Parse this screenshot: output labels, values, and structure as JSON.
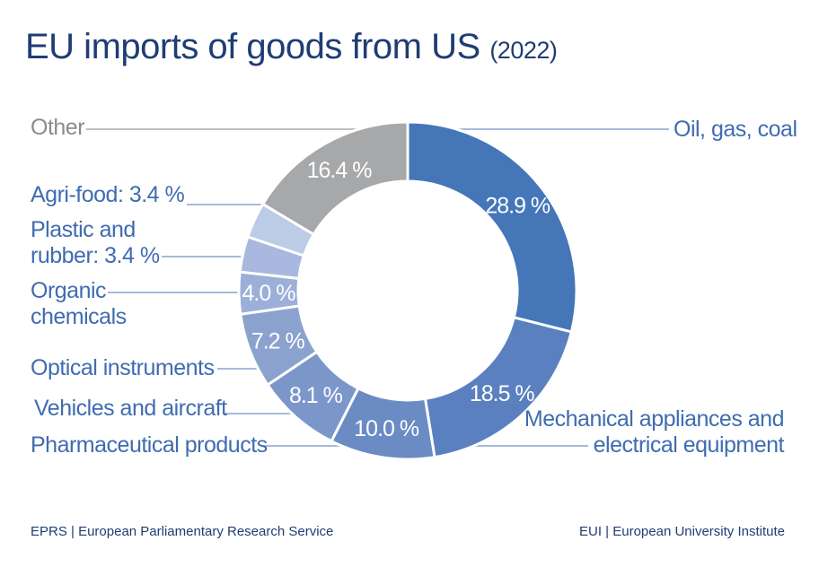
{
  "title": "EU imports of goods from US",
  "subtitle": "(2022)",
  "footer_left": "EPRS | European Parliamentary Research Service",
  "footer_right": "EUI | European University Institute",
  "chart_data": {
    "type": "pie",
    "donut": true,
    "title": "EU imports of goods from US (2022)",
    "unit": "%",
    "categories": [
      "Oil, gas, coal",
      "Mechanical appliances and electrical equipment",
      "Pharmaceutical products",
      "Vehicles and aircraft",
      "Optical instruments",
      "Organic chemicals",
      "Plastic and rubber",
      "Agri-food",
      "Other"
    ],
    "values": [
      28.9,
      18.5,
      10.0,
      8.1,
      7.2,
      4.0,
      3.4,
      3.4,
      16.4
    ],
    "data_labels": [
      "28.9 %",
      "18.5 %",
      "10.0 %",
      "8.1 %",
      "7.2 %",
      "4.0 %",
      "",
      "",
      "16.4 %"
    ],
    "legend_labels": [
      "Oil, gas, coal",
      "Mechanical appliances and\nelectrical equipment",
      "Pharmaceutical products",
      "Vehicles and aircraft",
      "Optical instruments",
      "Organic\nchemicals",
      "Plastic and\nrubber: 3.4 %",
      "Agri-food: 3.4 %",
      "Other"
    ],
    "colors": [
      "#4576b8",
      "#5a80bf",
      "#6b8bc4",
      "#7b97ca",
      "#8ba2cf",
      "#9cafd8",
      "#a9b8de",
      "#bccbe6",
      "#a7a8aa"
    ],
    "label_color": "#3f6cb0",
    "other_label_color": "#8a8b8d"
  }
}
